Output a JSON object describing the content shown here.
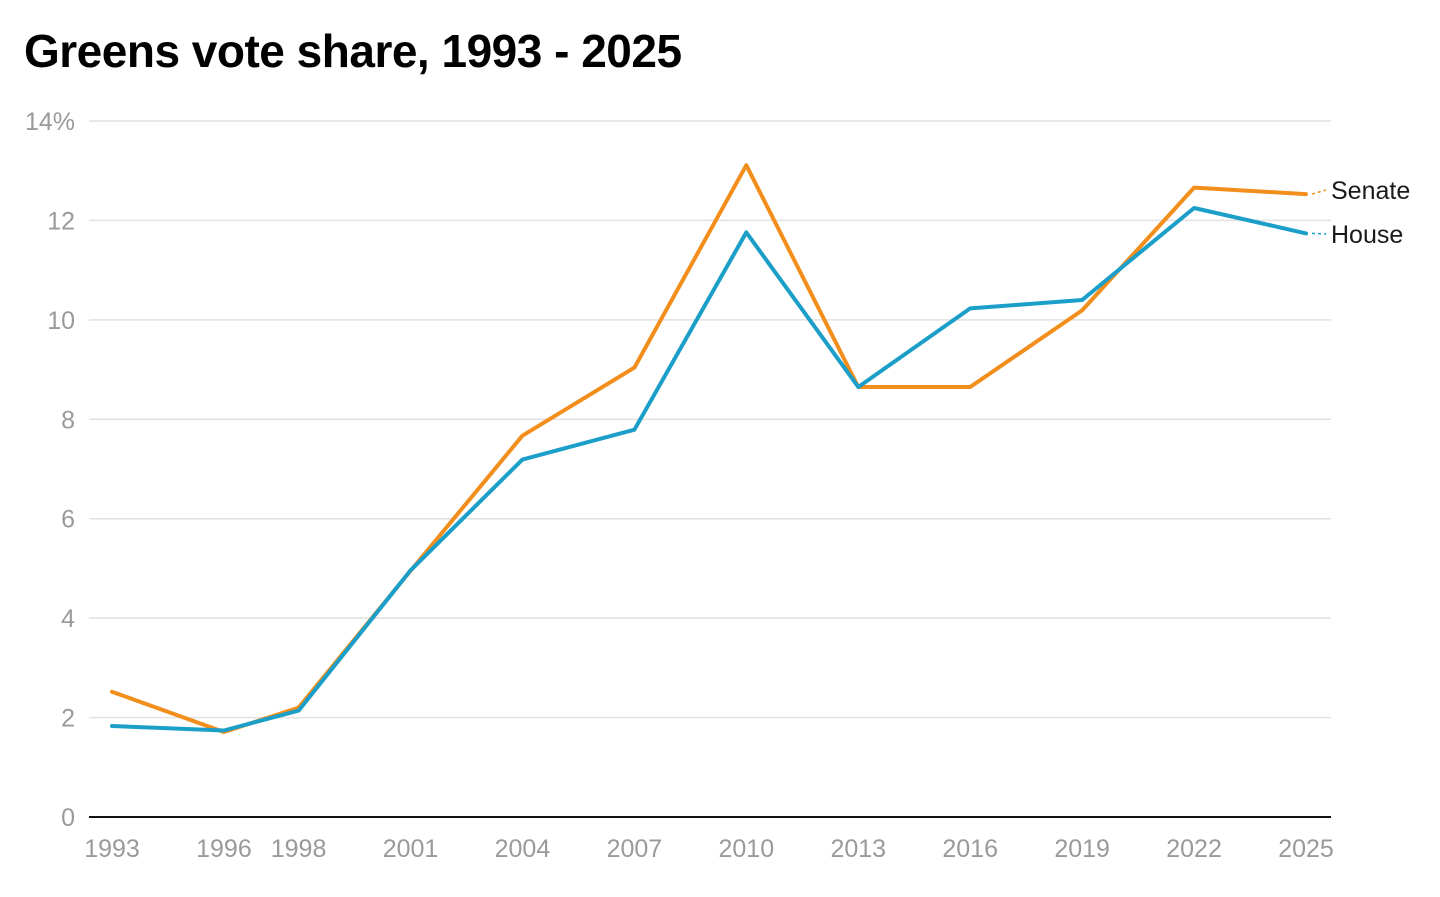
{
  "chart_data": {
    "type": "line",
    "title": "Greens vote share, 1993 - 2025",
    "xlabel": "",
    "ylabel": "",
    "x": [
      1993,
      1996,
      1998,
      2001,
      2004,
      2007,
      2010,
      2013,
      2016,
      2019,
      2022,
      2025
    ],
    "x_tick_labels": [
      "1993",
      "1996",
      "1998",
      "2001",
      "2004",
      "2007",
      "2010",
      "2013",
      "2016",
      "2019",
      "2022",
      "2025"
    ],
    "ylim": [
      0,
      14
    ],
    "y_ticks": [
      0,
      2,
      4,
      6,
      8,
      10,
      12,
      14
    ],
    "y_tick_labels": [
      "0",
      "2",
      "4",
      "6",
      "8",
      "10",
      "12",
      "14%"
    ],
    "grid": true,
    "legend": "end-of-line labels",
    "series": [
      {
        "name": "Senate",
        "color": "#f28e1c",
        "values": [
          2.52,
          1.71,
          2.2,
          4.95,
          7.67,
          9.04,
          13.11,
          8.65,
          8.65,
          10.19,
          12.66,
          12.53
        ]
      },
      {
        "name": "House",
        "color": "#1b9fc9",
        "values": [
          1.83,
          1.74,
          2.14,
          4.96,
          7.19,
          7.79,
          11.76,
          8.65,
          10.23,
          10.4,
          12.25,
          11.74
        ]
      }
    ]
  }
}
